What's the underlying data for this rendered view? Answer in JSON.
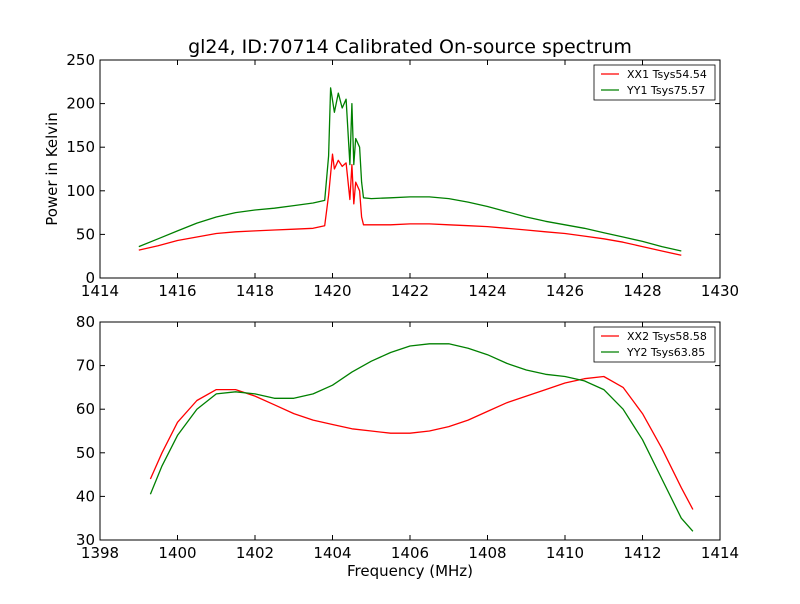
{
  "figure": {
    "title": "gl24, ID:70714 Calibrated On-source spectrum",
    "xlabel": "Frequency (MHz)"
  },
  "colors": {
    "red": "#ff0000",
    "green": "#008000"
  },
  "chart_data": [
    {
      "type": "line",
      "title": "gl24, ID:70714 Calibrated On-source spectrum",
      "xlabel": "",
      "ylabel": "Power in Kelvin",
      "xlim": [
        1414,
        1430
      ],
      "ylim": [
        0,
        250
      ],
      "xticks": [
        1414,
        1416,
        1418,
        1420,
        1422,
        1424,
        1426,
        1428,
        1430
      ],
      "yticks": [
        0,
        50,
        100,
        150,
        200,
        250
      ],
      "legend": "top-right",
      "grid": false,
      "series": [
        {
          "name": "XX1 Tsys54.54",
          "color": "#ff0000",
          "x": [
            1415.0,
            1415.5,
            1416.0,
            1416.5,
            1417.0,
            1417.5,
            1418.0,
            1418.5,
            1419.0,
            1419.5,
            1419.8,
            1419.9,
            1420.0,
            1420.05,
            1420.15,
            1420.25,
            1420.35,
            1420.45,
            1420.5,
            1420.55,
            1420.6,
            1420.7,
            1420.75,
            1420.8,
            1421.0,
            1421.5,
            1422.0,
            1422.5,
            1423.0,
            1423.5,
            1424.0,
            1424.5,
            1425.0,
            1425.5,
            1426.0,
            1426.5,
            1427.0,
            1427.5,
            1428.0,
            1428.5,
            1429.0
          ],
          "y": [
            32,
            37,
            43,
            47,
            51,
            53,
            54,
            55,
            56,
            57,
            60,
            95,
            142,
            125,
            135,
            128,
            132,
            90,
            130,
            85,
            110,
            100,
            70,
            61,
            61,
            61,
            62,
            62,
            61,
            60,
            59,
            57,
            55,
            53,
            51,
            48,
            45,
            41,
            36,
            31,
            26
          ]
        },
        {
          "name": "YY1 Tsys75.57",
          "color": "#008000",
          "x": [
            1415.0,
            1415.5,
            1416.0,
            1416.5,
            1417.0,
            1417.5,
            1418.0,
            1418.5,
            1419.0,
            1419.5,
            1419.8,
            1419.9,
            1419.95,
            1420.05,
            1420.15,
            1420.25,
            1420.35,
            1420.45,
            1420.5,
            1420.55,
            1420.6,
            1420.7,
            1420.75,
            1420.8,
            1421.0,
            1421.5,
            1422.0,
            1422.5,
            1423.0,
            1423.5,
            1424.0,
            1424.5,
            1425.0,
            1425.5,
            1426.0,
            1426.5,
            1427.0,
            1427.5,
            1428.0,
            1428.5,
            1429.0
          ],
          "y": [
            36,
            45,
            54,
            63,
            70,
            75,
            78,
            80,
            83,
            86,
            89,
            140,
            218,
            190,
            212,
            195,
            205,
            130,
            200,
            130,
            160,
            150,
            110,
            92,
            91,
            92,
            93,
            93,
            91,
            87,
            82,
            76,
            70,
            65,
            61,
            57,
            52,
            47,
            42,
            36,
            31
          ]
        }
      ]
    },
    {
      "type": "line",
      "title": "",
      "xlabel": "Frequency (MHz)",
      "ylabel": "",
      "xlim": [
        1398,
        1414
      ],
      "ylim": [
        30,
        80
      ],
      "xticks": [
        1398,
        1400,
        1402,
        1404,
        1406,
        1408,
        1410,
        1412,
        1414
      ],
      "yticks": [
        30,
        40,
        50,
        60,
        70,
        80
      ],
      "legend": "top-right",
      "grid": false,
      "series": [
        {
          "name": "XX2 Tsys58.58",
          "color": "#ff0000",
          "x": [
            1399.3,
            1399.6,
            1400.0,
            1400.5,
            1401.0,
            1401.5,
            1402.0,
            1402.5,
            1403.0,
            1403.5,
            1404.0,
            1404.5,
            1405.0,
            1405.5,
            1406.0,
            1406.5,
            1407.0,
            1407.5,
            1408.0,
            1408.5,
            1409.0,
            1409.5,
            1410.0,
            1410.5,
            1411.0,
            1411.5,
            1412.0,
            1412.5,
            1413.0,
            1413.3
          ],
          "y": [
            44,
            50,
            57,
            62,
            64.5,
            64.5,
            63,
            61,
            59,
            57.5,
            56.5,
            55.5,
            55,
            54.5,
            54.5,
            55,
            56,
            57.5,
            59.5,
            61.5,
            63,
            64.5,
            66,
            67,
            67.5,
            65,
            59,
            51,
            42,
            37
          ]
        },
        {
          "name": "YY2 Tsys63.85",
          "color": "#008000",
          "x": [
            1399.3,
            1399.6,
            1400.0,
            1400.5,
            1401.0,
            1401.5,
            1402.0,
            1402.5,
            1403.0,
            1403.5,
            1404.0,
            1404.5,
            1405.0,
            1405.5,
            1406.0,
            1406.5,
            1407.0,
            1407.5,
            1408.0,
            1408.5,
            1409.0,
            1409.5,
            1410.0,
            1410.5,
            1411.0,
            1411.5,
            1412.0,
            1412.5,
            1413.0,
            1413.3
          ],
          "y": [
            40.5,
            47,
            54,
            60,
            63.5,
            64,
            63.5,
            62.5,
            62.5,
            63.5,
            65.5,
            68.5,
            71,
            73,
            74.5,
            75,
            75,
            74,
            72.5,
            70.5,
            69,
            68,
            67.5,
            66.5,
            64.5,
            60,
            53,
            44,
            35,
            32
          ]
        }
      ]
    }
  ]
}
